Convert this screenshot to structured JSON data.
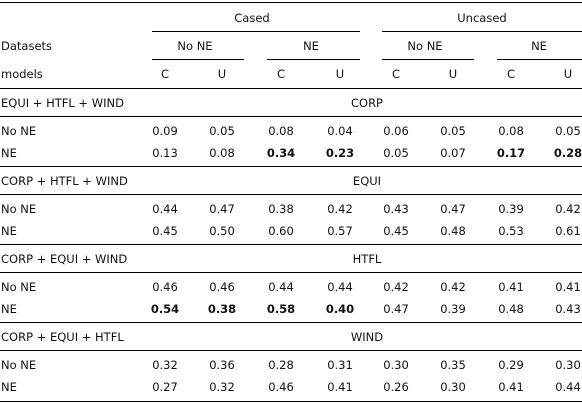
{
  "header": {
    "cased": "Cased",
    "uncased": "Uncased",
    "datasets_label": "Datasets",
    "models_label": "models",
    "no_ne": "No NE",
    "ne": "NE",
    "c": "C",
    "u": "U"
  },
  "sections": [
    {
      "train": "EQUI + HTFL + WIND",
      "test": "CORP",
      "rows": [
        {
          "label": "No NE",
          "values": [
            "0.09",
            "0.05",
            "0.08",
            "0.04",
            "0.06",
            "0.05",
            "0.08",
            "0.05"
          ],
          "bold": [
            false,
            false,
            false,
            false,
            false,
            false,
            false,
            false
          ]
        },
        {
          "label": "NE",
          "values": [
            "0.13",
            "0.08",
            "0.34",
            "0.23",
            "0.05",
            "0.07",
            "0.17",
            "0.28"
          ],
          "bold": [
            false,
            false,
            true,
            true,
            false,
            false,
            true,
            true
          ]
        }
      ]
    },
    {
      "train": "CORP + HTFL + WIND",
      "test": "EQUI",
      "rows": [
        {
          "label": "No NE",
          "values": [
            "0.44",
            "0.47",
            "0.38",
            "0.42",
            "0.43",
            "0.47",
            "0.39",
            "0.42"
          ],
          "bold": [
            false,
            false,
            false,
            false,
            false,
            false,
            false,
            false
          ]
        },
        {
          "label": "NE",
          "values": [
            "0.45",
            "0.50",
            "0.60",
            "0.57",
            "0.45",
            "0.48",
            "0.53",
            "0.61"
          ],
          "bold": [
            false,
            false,
            false,
            false,
            false,
            false,
            false,
            false
          ]
        }
      ]
    },
    {
      "train": "CORP + EQUI + WIND",
      "test": "HTFL",
      "rows": [
        {
          "label": "No NE",
          "values": [
            "0.46",
            "0.46",
            "0.44",
            "0.44",
            "0.42",
            "0.42",
            "0.41",
            "0.41"
          ],
          "bold": [
            false,
            false,
            false,
            false,
            false,
            false,
            false,
            false
          ]
        },
        {
          "label": "NE",
          "values": [
            "0.54",
            "0.38",
            "0.58",
            "0.40",
            "0.47",
            "0.39",
            "0.48",
            "0.43"
          ],
          "bold": [
            true,
            true,
            true,
            true,
            false,
            false,
            false,
            false
          ]
        }
      ]
    },
    {
      "train": "CORP + EQUI + HTFL",
      "test": "WIND",
      "rows": [
        {
          "label": "No NE",
          "values": [
            "0.32",
            "0.36",
            "0.28",
            "0.31",
            "0.30",
            "0.35",
            "0.29",
            "0.30"
          ],
          "bold": [
            false,
            false,
            false,
            false,
            false,
            false,
            false,
            false
          ]
        },
        {
          "label": "NE",
          "values": [
            "0.27",
            "0.32",
            "0.46",
            "0.41",
            "0.26",
            "0.30",
            "0.41",
            "0.44"
          ],
          "bold": [
            false,
            false,
            false,
            false,
            false,
            false,
            false,
            false
          ]
        }
      ]
    }
  ]
}
